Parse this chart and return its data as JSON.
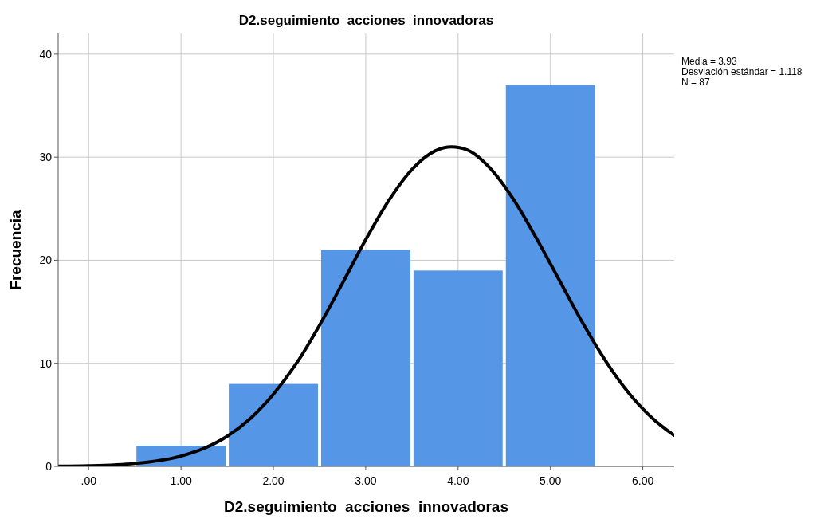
{
  "chart_data": {
    "type": "histogram",
    "title": "D2.seguimiento_acciones_innovadoras",
    "xlabel": "D2.seguimiento_acciones_innovadoras",
    "ylabel": "Frecuencia",
    "bins": [
      0.5,
      1.5,
      2.5,
      3.5,
      4.5,
      5.5
    ],
    "values": [
      2,
      8,
      21,
      19,
      37
    ],
    "color": "#5596e6",
    "series": [
      {
        "type": "line",
        "color": "#000000",
        "x": [
          -0.33,
          0,
          0.5,
          1,
          1.25,
          1.5,
          1.75,
          2,
          2.25,
          2.5,
          2.75,
          3,
          3.25,
          3.5,
          3.75,
          3.93,
          4.1,
          4.35,
          4.6,
          4.85,
          5.1,
          5.35,
          5.6,
          5.85,
          6.1,
          6.34
        ],
        "values": [
          0.02,
          0.06,
          0.28,
          1.0,
          1.75,
          2.92,
          4.64,
          7.0,
          10.0,
          13.7,
          17.8,
          22.0,
          25.8,
          28.8,
          30.6,
          31.0,
          30.7,
          28.9,
          25.9,
          22.1,
          18.0,
          13.9,
          10.2,
          7.1,
          4.7,
          3.0
        ]
      }
    ],
    "xlim": [
      -0.33,
      6.34
    ],
    "xticks": [
      {
        "value": 0,
        "label": ".00"
      },
      {
        "value": 1,
        "label": "1.00"
      },
      {
        "value": 2,
        "label": "2.00"
      },
      {
        "value": 3,
        "label": "3.00"
      },
      {
        "value": 4,
        "label": "4.00"
      },
      {
        "value": 5,
        "label": "5.00"
      },
      {
        "value": 6,
        "label": "6.00"
      }
    ],
    "ylim": [
      0,
      42
    ],
    "yticks": [
      0,
      10,
      20,
      30,
      40
    ],
    "grid": true,
    "annotations": [
      "Media = 3.93",
      "Desviación estándar = 1.118",
      "N = 87"
    ]
  }
}
